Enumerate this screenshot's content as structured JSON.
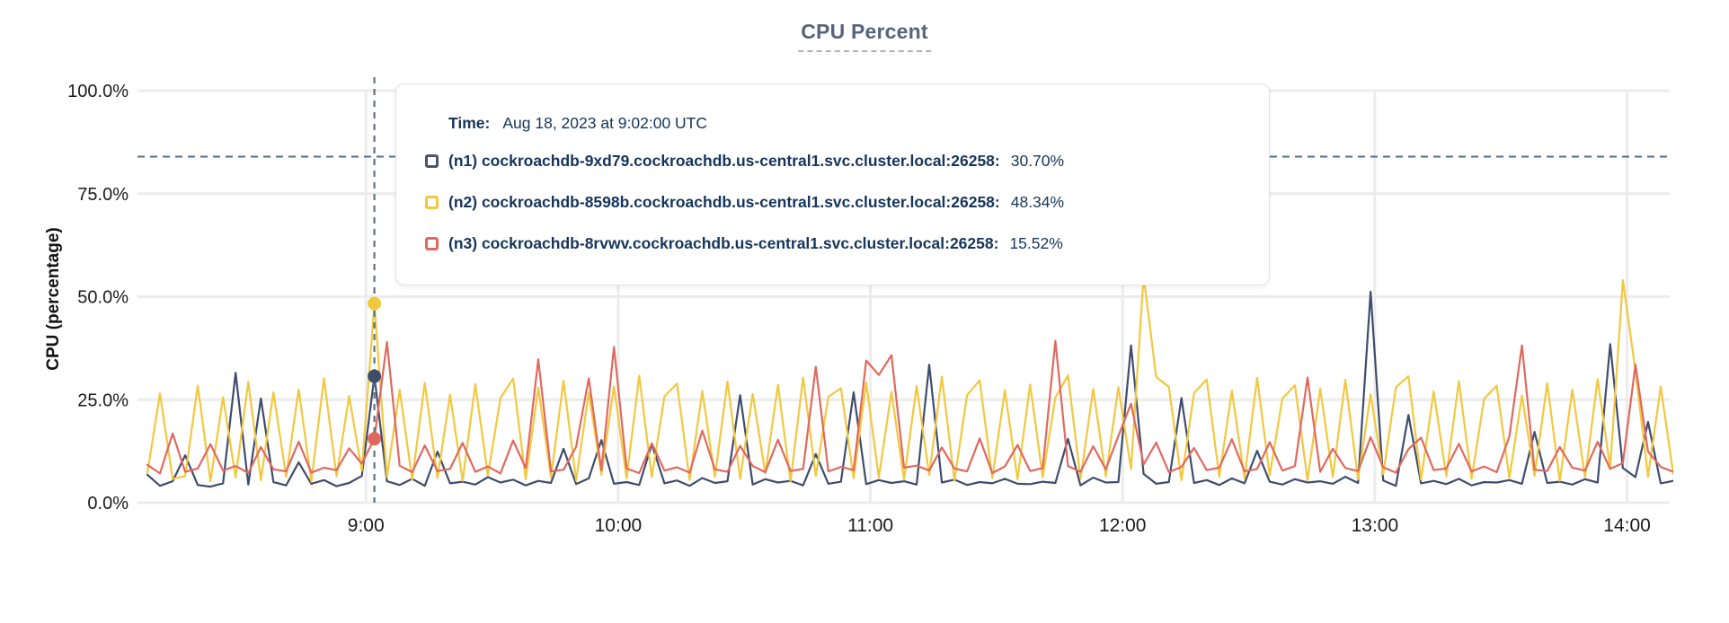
{
  "title": {
    "text": "CPU Percent"
  },
  "tooltip": {
    "time_label": "Time:",
    "time_value": "Aug 18, 2023 at 9:02:00 UTC",
    "rows": [
      {
        "id": "n1",
        "name": "(n1) cockroachdb-9xd79.cockroachdb.us-central1.svc.cluster.local:26258:",
        "value": "30.70%",
        "color": "#475570"
      },
      {
        "id": "n2",
        "name": "(n2) cockroachdb-8598b.cockroachdb.us-central1.svc.cluster.local:26258:",
        "value": "48.34%",
        "color": "#f2c83f"
      },
      {
        "id": "n3",
        "name": "(n3) cockroachdb-8rvwv.cockroachdb.us-central1.svc.cluster.local:26258:",
        "value": "15.52%",
        "color": "#e0695f"
      }
    ]
  },
  "chart_data": {
    "type": "line",
    "title": "CPU Percent",
    "xlabel": "",
    "ylabel": "CPU (percentage)",
    "ylim": [
      0,
      100
    ],
    "grid": true,
    "legend_position": "tooltip-overlay",
    "y_ticks": [
      {
        "label": "0.0%",
        "value": 0
      },
      {
        "label": "25.0%",
        "value": 25
      },
      {
        "label": "50.0%",
        "value": 50
      },
      {
        "label": "75.0%",
        "value": 75
      },
      {
        "label": "100.0%",
        "value": 100
      }
    ],
    "x_ticks": [
      {
        "label": "9:00",
        "value": 9
      },
      {
        "label": "10:00",
        "value": 10
      },
      {
        "label": "11:00",
        "value": 11
      },
      {
        "label": "12:00",
        "value": 12
      },
      {
        "label": "13:00",
        "value": 13
      },
      {
        "label": "14:00",
        "value": 14
      }
    ],
    "x_domain": [
      8.1333,
      14.1833
    ],
    "x_step_hours": 0.05,
    "threshold_line": {
      "value": 84,
      "style": "dashed",
      "color": "#4f6e8c"
    },
    "hover": {
      "x": 9.0333,
      "time": "Aug 18, 2023 at 9:02:00 UTC",
      "values": {
        "n1": 30.7,
        "n2": 48.34,
        "n3": 15.52
      }
    },
    "series": [
      {
        "name": "n1",
        "host": "cockroachdb-9xd79.cockroachdb.us-central1.svc.cluster.local:26258",
        "color": "#3e4d6d",
        "values": [
          6.8,
          4.1,
          5.2,
          11.5,
          4.3,
          3.9,
          4.7,
          31.5,
          4.4,
          25.3,
          5.0,
          4.2,
          9.8,
          4.6,
          5.5,
          4.0,
          4.8,
          6.5,
          30.7,
          5.2,
          4.3,
          5.8,
          4.1,
          12.4,
          4.7,
          5.1,
          4.4,
          6.2,
          4.9,
          5.6,
          4.2,
          5.3,
          4.8,
          13.1,
          4.5,
          5.9,
          15.2,
          4.6,
          5.0,
          4.3,
          14.2,
          4.7,
          5.4,
          4.1,
          6.0,
          4.8,
          5.2,
          26.1,
          4.4,
          5.7,
          4.9,
          5.3,
          4.2,
          11.8,
          4.6,
          5.1,
          26.8,
          4.5,
          5.5,
          4.8,
          5.2,
          4.4,
          33.5,
          4.9,
          5.6,
          4.3,
          5.0,
          4.7,
          5.8,
          4.6,
          4.5,
          5.1,
          4.8,
          15.5,
          4.2,
          6.1,
          4.9,
          5.0,
          38.2,
          7.0,
          4.6,
          5.0,
          25.4,
          4.8,
          5.5,
          4.3,
          5.9,
          4.7,
          12.6,
          5.1,
          4.4,
          5.7,
          4.9,
          5.2,
          4.6,
          6.3,
          4.8,
          51.2,
          5.4,
          4.1,
          21.3,
          4.7,
          5.3,
          4.5,
          5.8,
          4.2,
          5.0,
          4.9,
          5.5,
          4.6,
          17.2,
          4.8,
          5.1,
          4.4,
          5.7,
          4.9,
          38.5,
          8.4,
          6.2,
          19.6,
          4.7,
          5.3
        ]
      },
      {
        "name": "n2",
        "host": "cockroachdb-8598b.cockroachdb.us-central1.svc.cluster.local:26258",
        "color": "#f2c83f",
        "values": [
          7.2,
          26.5,
          5.8,
          6.5,
          28.4,
          5.2,
          25.6,
          6.1,
          29.3,
          5.5,
          26.8,
          6.3,
          27.5,
          5.1,
          30.2,
          6.4,
          25.9,
          7.8,
          48.34,
          6.2,
          27.4,
          5.6,
          29.1,
          6.0,
          26.2,
          5.3,
          28.8,
          6.6,
          25.4,
          30.1,
          5.7,
          27.9,
          6.1,
          29.6,
          5.4,
          26.7,
          6.8,
          28.2,
          5.9,
          30.8,
          6.2,
          25.8,
          28.9,
          5.5,
          27.1,
          6.3,
          29.4,
          5.8,
          26.4,
          7.1,
          28.6,
          5.2,
          30.4,
          6.5,
          25.7,
          27.8,
          5.9,
          29.2,
          6.1,
          26.9,
          5.6,
          28.3,
          6.7,
          30.6,
          5.3,
          26.1,
          29.7,
          6.0,
          27.3,
          5.7,
          28.7,
          6.2,
          25.5,
          30.9,
          5.8,
          27.6,
          6.4,
          28.0,
          8.2,
          55.0,
          30.5,
          28.1,
          5.5,
          26.6,
          29.9,
          6.3,
          27.2,
          5.9,
          30.3,
          6.6,
          25.3,
          28.5,
          5.4,
          27.7,
          6.2,
          29.8,
          5.7,
          26.3,
          6.9,
          28.0,
          30.7,
          5.6,
          27.0,
          6.4,
          29.5,
          5.8,
          25.2,
          28.4,
          6.0,
          26.0,
          6.5,
          29.0,
          5.3,
          27.5,
          6.1,
          30.0,
          8.5,
          54.0,
          32.0,
          6.3,
          28.2,
          7.0
        ]
      },
      {
        "name": "n3",
        "host": "cockroachdb-8rvwv.cockroachdb.us-central1.svc.cluster.local:26258",
        "color": "#e0695f",
        "values": [
          9.2,
          7.1,
          16.8,
          7.5,
          8.3,
          14.2,
          7.8,
          8.9,
          7.2,
          13.5,
          8.1,
          7.6,
          14.8,
          7.3,
          8.5,
          7.9,
          13.2,
          9.5,
          15.52,
          39.0,
          9.0,
          7.4,
          13.9,
          7.7,
          8.2,
          14.5,
          7.5,
          8.8,
          7.1,
          15.1,
          8.4,
          34.8,
          7.6,
          8.0,
          13.6,
          30.2,
          7.9,
          37.8,
          8.3,
          7.2,
          14.4,
          7.8,
          8.6,
          7.3,
          17.5,
          8.1,
          7.5,
          13.8,
          8.9,
          7.4,
          15.3,
          7.7,
          8.2,
          33.0,
          7.6,
          8.7,
          7.9,
          34.5,
          31.0,
          35.8,
          8.5,
          9.0,
          7.8,
          13.4,
          8.3,
          7.6,
          15.6,
          7.2,
          8.8,
          14.0,
          7.7,
          8.4,
          39.3,
          8.9,
          7.5,
          13.7,
          8.1,
          16.2,
          24.0,
          9.3,
          14.6,
          7.4,
          8.7,
          13.3,
          7.9,
          8.5,
          15.4,
          7.6,
          8.2,
          14.7,
          7.8,
          8.9,
          30.4,
          7.5,
          13.1,
          8.4,
          7.7,
          15.9,
          8.6,
          7.3,
          13.0,
          15.8,
          7.9,
          8.3,
          14.3,
          7.6,
          8.8,
          7.4,
          16.1,
          38.2,
          8.0,
          7.7,
          13.5,
          8.5,
          7.8,
          14.8,
          8.2,
          9.6,
          33.5,
          12.4,
          8.7,
          7.5
        ]
      }
    ]
  },
  "colors": {
    "gridline": "#ececec",
    "axis_text": "#1a1a1a",
    "cursor_line": "#5a7389",
    "threshold_line": "#4f6e8c",
    "tooltip_text": "#15355c",
    "title_text": "#56647c"
  }
}
